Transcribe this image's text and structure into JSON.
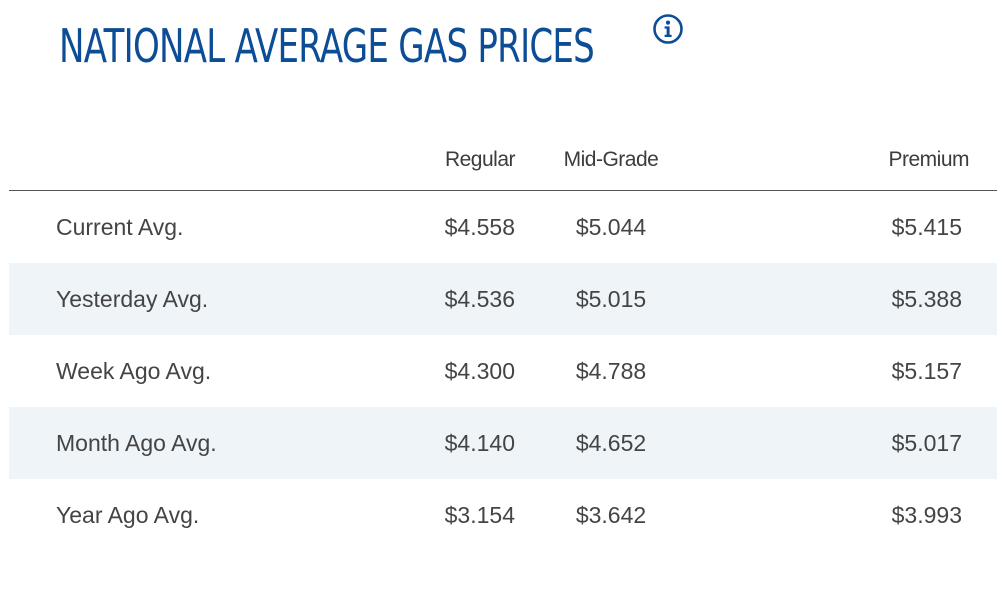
{
  "header": {
    "title": "NATIONAL AVERAGE GAS PRICES",
    "info_icon": "info-circle-icon",
    "accent_color": "#0c4d96"
  },
  "table": {
    "columns": {
      "regular": "Regular",
      "mid_grade": "Mid-Grade",
      "premium": "Premium"
    },
    "rows": [
      {
        "label": "Current Avg.",
        "regular": "$4.558",
        "mid_grade": "$5.044",
        "premium": "$5.415"
      },
      {
        "label": "Yesterday Avg.",
        "regular": "$4.536",
        "mid_grade": "$5.015",
        "premium": "$5.388"
      },
      {
        "label": "Week Ago Avg.",
        "regular": "$4.300",
        "mid_grade": "$4.788",
        "premium": "$5.157"
      },
      {
        "label": "Month Ago Avg.",
        "regular": "$4.140",
        "mid_grade": "$4.652",
        "premium": "$5.017"
      },
      {
        "label": "Year Ago Avg.",
        "regular": "$3.154",
        "mid_grade": "$3.642",
        "premium": "$3.993"
      }
    ],
    "stripe_color": "#eff4f8"
  }
}
